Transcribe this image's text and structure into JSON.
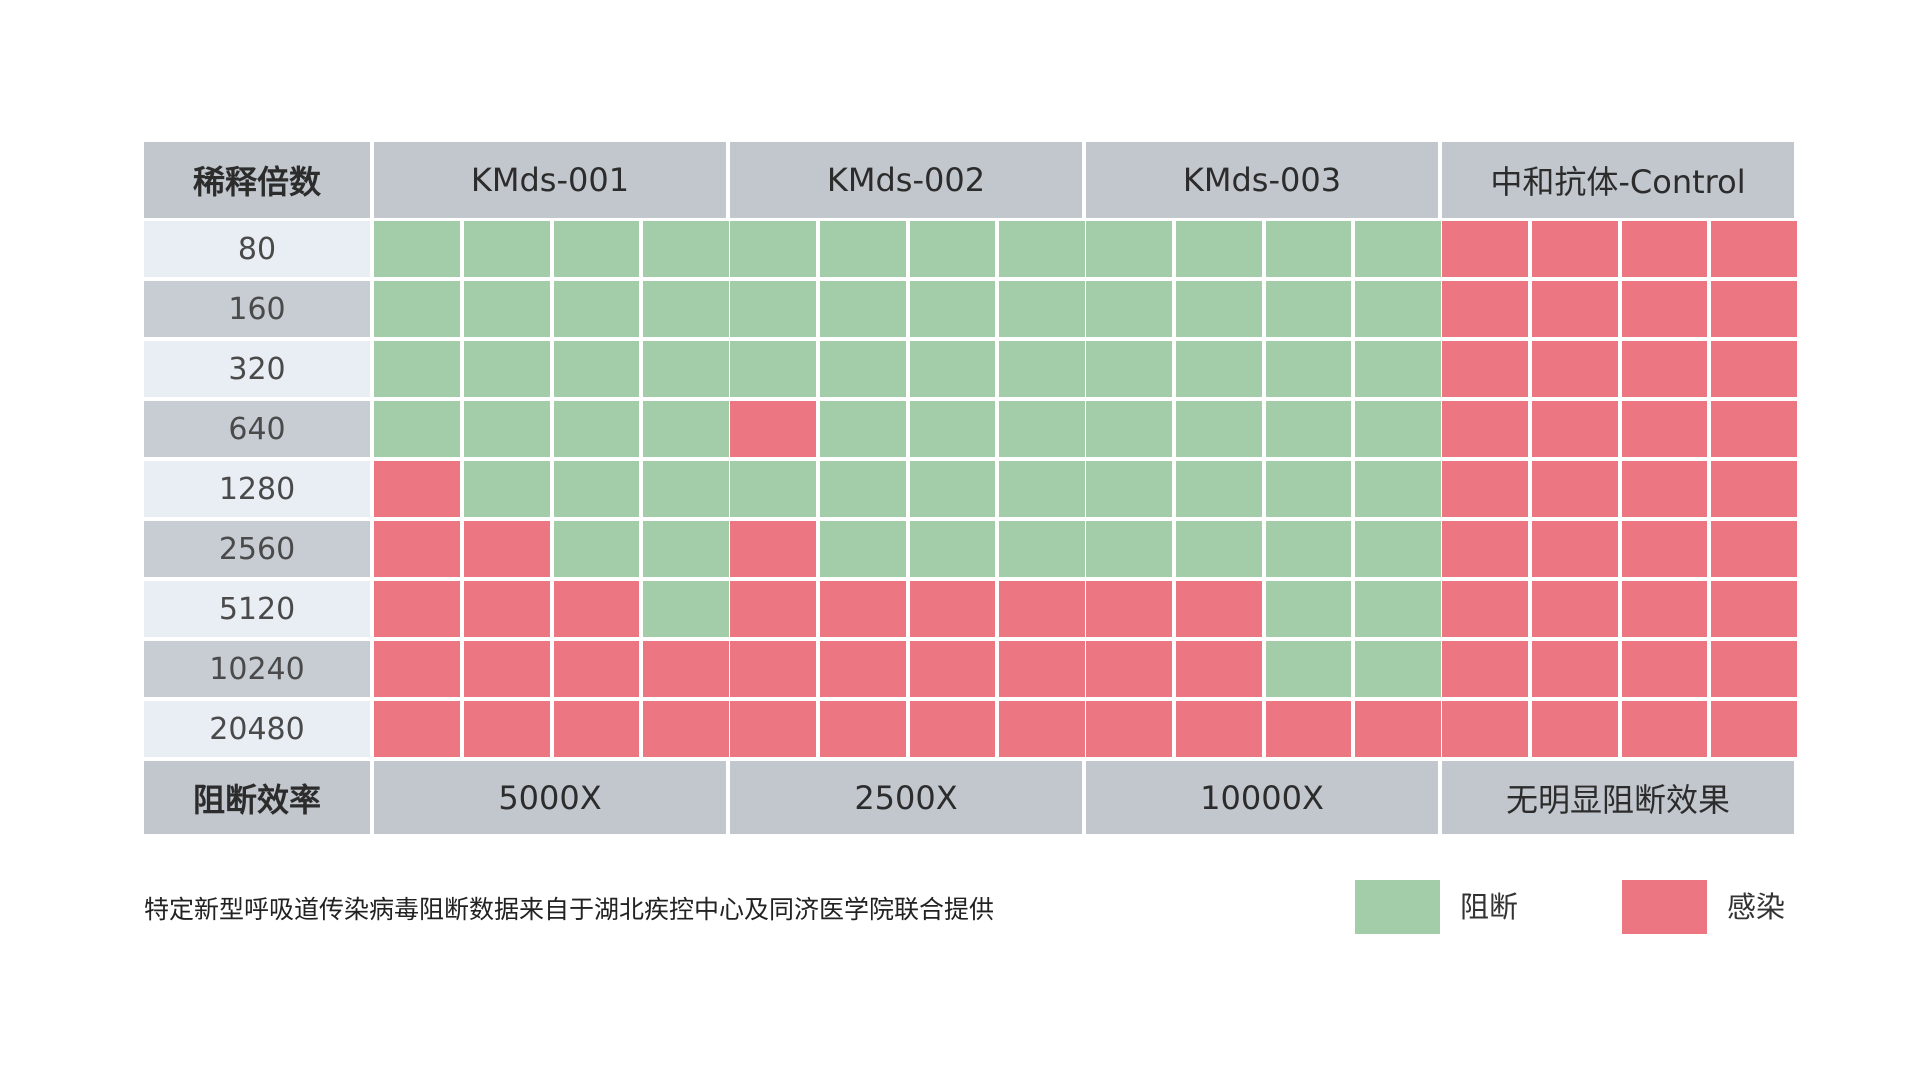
{
  "chart_data": {
    "type": "heatmap",
    "row_header": "稀释倍数",
    "column_groups": [
      "KMds-001",
      "KMds-002",
      "KMds-003",
      "中和抗体-Control"
    ],
    "rows": [
      "80",
      "160",
      "320",
      "640",
      "1280",
      "2560",
      "5120",
      "10240",
      "20480"
    ],
    "footer_row_label": "阻断效率",
    "footer_values": [
      "5000X",
      "2500X",
      "10000X",
      "无明显阻断效果"
    ],
    "cell_values_legend": {
      "B": "阻断",
      "I": "感染"
    },
    "cells": [
      [
        "B",
        "B",
        "B",
        "B",
        "B",
        "B",
        "B",
        "B",
        "B",
        "B",
        "B",
        "B",
        "I",
        "I",
        "I",
        "I"
      ],
      [
        "B",
        "B",
        "B",
        "B",
        "B",
        "B",
        "B",
        "B",
        "B",
        "B",
        "B",
        "B",
        "I",
        "I",
        "I",
        "I"
      ],
      [
        "B",
        "B",
        "B",
        "B",
        "B",
        "B",
        "B",
        "B",
        "B",
        "B",
        "B",
        "B",
        "I",
        "I",
        "I",
        "I"
      ],
      [
        "B",
        "B",
        "B",
        "B",
        "I",
        "B",
        "B",
        "B",
        "B",
        "B",
        "B",
        "B",
        "I",
        "I",
        "I",
        "I"
      ],
      [
        "I",
        "B",
        "B",
        "B",
        "B",
        "B",
        "B",
        "B",
        "B",
        "B",
        "B",
        "B",
        "I",
        "I",
        "I",
        "I"
      ],
      [
        "I",
        "I",
        "B",
        "B",
        "I",
        "B",
        "B",
        "B",
        "B",
        "B",
        "B",
        "B",
        "I",
        "I",
        "I",
        "I"
      ],
      [
        "I",
        "I",
        "I",
        "B",
        "I",
        "I",
        "I",
        "I",
        "I",
        "I",
        "B",
        "B",
        "I",
        "I",
        "I",
        "I"
      ],
      [
        "I",
        "I",
        "I",
        "I",
        "I",
        "I",
        "I",
        "I",
        "I",
        "I",
        "B",
        "B",
        "I",
        "I",
        "I",
        "I"
      ],
      [
        "I",
        "I",
        "I",
        "I",
        "I",
        "I",
        "I",
        "I",
        "I",
        "I",
        "I",
        "I",
        "I",
        "I",
        "I",
        "I"
      ]
    ],
    "colors": {
      "block": "#a3cda8",
      "infect": "#ec7682",
      "header": "#c2c7ce",
      "row_odd": "#e8eef3",
      "row_even": "#c8cdd4"
    }
  },
  "footnote": "特定新型呼吸道传染病毒阻断数据来自于湖北疾控中心及同济医学院联合提供",
  "legend": [
    {
      "label": "阻断",
      "color": "#a3cda8"
    },
    {
      "label": "感染",
      "color": "#ec7682"
    }
  ]
}
